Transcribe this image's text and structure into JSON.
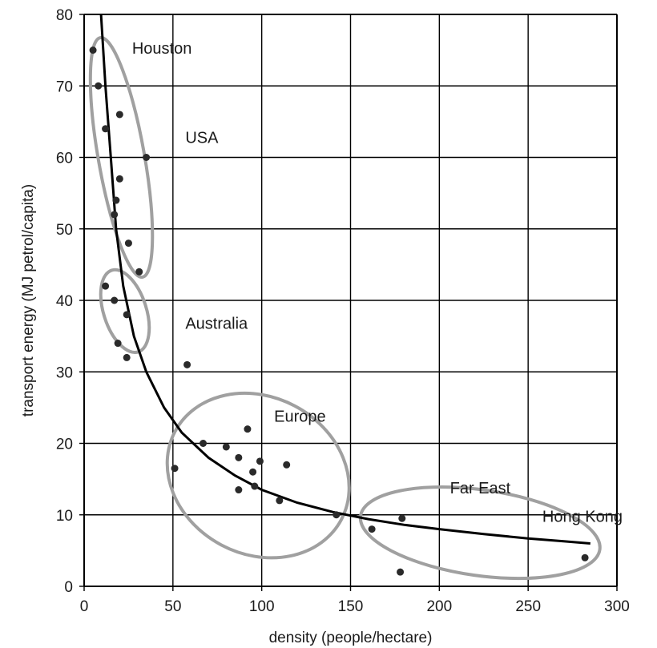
{
  "chart_data": {
    "type": "scatter",
    "title": "",
    "xlabel": "density (people/hectare)",
    "ylabel": "transport energy (MJ petrol/capita)",
    "xlim": [
      0,
      300
    ],
    "ylim": [
      0,
      80
    ],
    "xticks": [
      0,
      50,
      100,
      150,
      200,
      250,
      300
    ],
    "yticks": [
      0,
      10,
      20,
      30,
      40,
      50,
      60,
      70,
      80
    ],
    "grid": true,
    "colors": {
      "points": "#2a2a2a",
      "curve": "#000000",
      "ellipses": "#a0a0a0",
      "grid": "#000000"
    },
    "points": [
      {
        "x": 5,
        "y": 75
      },
      {
        "x": 8,
        "y": 70
      },
      {
        "x": 12,
        "y": 64
      },
      {
        "x": 20,
        "y": 66
      },
      {
        "x": 35,
        "y": 60
      },
      {
        "x": 20,
        "y": 57
      },
      {
        "x": 18,
        "y": 54
      },
      {
        "x": 17,
        "y": 52
      },
      {
        "x": 25,
        "y": 48
      },
      {
        "x": 31,
        "y": 44
      },
      {
        "x": 12,
        "y": 42
      },
      {
        "x": 17,
        "y": 40
      },
      {
        "x": 24,
        "y": 38
      },
      {
        "x": 19,
        "y": 34
      },
      {
        "x": 24,
        "y": 32
      },
      {
        "x": 58,
        "y": 31
      },
      {
        "x": 67,
        "y": 20
      },
      {
        "x": 80,
        "y": 19.5
      },
      {
        "x": 87,
        "y": 18
      },
      {
        "x": 92,
        "y": 22
      },
      {
        "x": 99,
        "y": 17.5
      },
      {
        "x": 95,
        "y": 16
      },
      {
        "x": 114,
        "y": 17
      },
      {
        "x": 51,
        "y": 16.5
      },
      {
        "x": 87,
        "y": 13.5
      },
      {
        "x": 96,
        "y": 14
      },
      {
        "x": 110,
        "y": 12
      },
      {
        "x": 142,
        "y": 10
      },
      {
        "x": 162,
        "y": 8
      },
      {
        "x": 179,
        "y": 9.5
      },
      {
        "x": 178,
        "y": 2
      },
      {
        "x": 282,
        "y": 4
      }
    ],
    "trend_curve": [
      {
        "x": 9.5,
        "y": 80
      },
      {
        "x": 12,
        "y": 70
      },
      {
        "x": 15,
        "y": 60
      },
      {
        "x": 18,
        "y": 50
      },
      {
        "x": 22,
        "y": 42
      },
      {
        "x": 28,
        "y": 35
      },
      {
        "x": 35,
        "y": 30
      },
      {
        "x": 45,
        "y": 25
      },
      {
        "x": 55,
        "y": 21.5
      },
      {
        "x": 70,
        "y": 18
      },
      {
        "x": 85,
        "y": 15.5
      },
      {
        "x": 100,
        "y": 13.5
      },
      {
        "x": 120,
        "y": 11.7
      },
      {
        "x": 140,
        "y": 10.4
      },
      {
        "x": 160,
        "y": 9.4
      },
      {
        "x": 180,
        "y": 8.6
      },
      {
        "x": 200,
        "y": 8
      },
      {
        "x": 225,
        "y": 7.3
      },
      {
        "x": 250,
        "y": 6.7
      },
      {
        "x": 270,
        "y": 6.3
      },
      {
        "x": 285,
        "y": 6
      }
    ],
    "regions": [
      {
        "label": "Houston",
        "label_x": 27,
        "label_y": 74.5,
        "cx": 21,
        "cy": 60,
        "rx": 13,
        "ry": 17,
        "rotate": -10
      },
      {
        "label": "USA",
        "label_x": 57,
        "label_y": 62,
        "cx": 21,
        "cy": 60,
        "rx": 13,
        "ry": 17,
        "rotate": -10,
        "shared_ellipse": true
      },
      {
        "label": "Australia",
        "label_x": 57,
        "label_y": 36,
        "cx": 23,
        "cy": 38.5,
        "rx": 12,
        "ry": 6,
        "rotate": -18
      },
      {
        "label": "Europe",
        "label_x": 107,
        "label_y": 23,
        "cx": 98,
        "cy": 15.5,
        "rx": 53,
        "ry": 11,
        "rotate": 28
      },
      {
        "label": "Far East",
        "label_x": 206,
        "label_y": 13,
        "cx": 223,
        "cy": 7.5,
        "rx": 68,
        "ry": 6,
        "rotate": 8
      },
      {
        "label": "Hong Kong",
        "label_x": 258,
        "label_y": 9,
        "cx": 0,
        "cy": 0,
        "rx": 0,
        "ry": 0,
        "rotate": 0,
        "no_ellipse": true
      }
    ]
  }
}
